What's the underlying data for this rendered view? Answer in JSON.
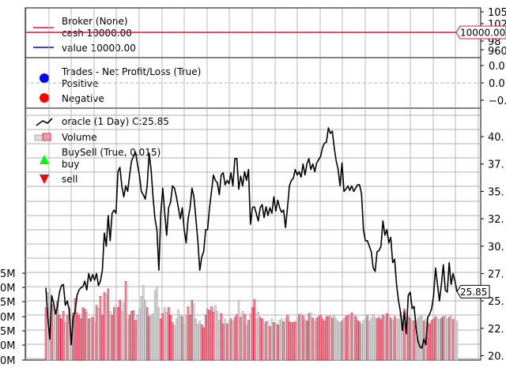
{
  "colors": {
    "cash_line": "#dc143c",
    "value_line": "#0000dd",
    "positive": "#0000ff",
    "negative": "#ff0000",
    "buy": "#00ff00",
    "sell": "#ff0000",
    "price_line": "#000000",
    "vol_up": "#e8a0a8",
    "vol_up_edge": "#dc143c",
    "vol_down": "#dddddd",
    "vol_down_edge": "#999999",
    "grid": "#b0b0b0"
  },
  "broker_panel": {
    "legend_title": "Broker (None)",
    "cash_label": "cash 10000.00",
    "value_label": "value 10000.00",
    "cash_value": 10000,
    "tag": "10000.00",
    "yticks": [
      "105",
      "102",
      "100",
      "98",
      "960"
    ]
  },
  "trades_panel": {
    "legend_title": "Trades - Net Profit/Loss (True)",
    "positive_label": "Positive",
    "negative_label": "Negative",
    "yticks": [
      "0.0",
      "0.0",
      "0.0",
      "−0."
    ]
  },
  "price_panel": {
    "series_label": "oracle (1 Day) C:25.85",
    "volume_label": "Volume",
    "buysell_label": "BuySell (True, 0.015)",
    "buy_label": "buy",
    "sell_label": "sell",
    "last_value_tag": "25.85",
    "right_yticks": [
      "40.",
      "37.",
      "35.",
      "32.",
      "30.",
      "27.",
      "25.",
      "22.",
      "20."
    ],
    "left_yticks": [
      "5M",
      "0M",
      "5M",
      "0M",
      "5M",
      "0M",
      "0M"
    ]
  },
  "chart_data": {
    "type": "line",
    "series": [
      {
        "name": "oracle (1 Day) C:25.85",
        "values": [
          26.2,
          23.5,
          21.5,
          25.5,
          24.8,
          23.8,
          24.6,
          25.8,
          26.4,
          26.5,
          24.6,
          25.0,
          24.2,
          21.0,
          23.5,
          24.0,
          25.5,
          26.0,
          26.2,
          26.3,
          26.8,
          26.0,
          27.5,
          26.8,
          27.4,
          26.9,
          27.5,
          26.4,
          26.8,
          27.8,
          31.2,
          30.0,
          32.8,
          30.5,
          33.0,
          33.3,
          33.0,
          36.8,
          37.2,
          35.5,
          34.5,
          35.5,
          35.0,
          36.5,
          37.8,
          38.2,
          38.6,
          37.5,
          36.5,
          35.0,
          34.7,
          34.3,
          35.5,
          38.5,
          37.0,
          34.5,
          32.5,
          31.5,
          27.8,
          33.0,
          35.3,
          33.0,
          31.0,
          33.5,
          34.0,
          35.5,
          35.3,
          34.5,
          33.5,
          32.5,
          33.5,
          31.5,
          30.3,
          32.5,
          33.5,
          35.3,
          34.5,
          32.5,
          30.5,
          27.8,
          29.0,
          29.5,
          31.5,
          31.5,
          33.5,
          35.0,
          36.5,
          36.0,
          35.8,
          34.7,
          36.5,
          36.7,
          35.6,
          36.0,
          35.7,
          36.7,
          35.5,
          38.0,
          38.0,
          35.2,
          36.4,
          35.5,
          36.8,
          36.0,
          37.0,
          32.0,
          33.5,
          33.6,
          33.0,
          32.3,
          33.5,
          33.8,
          32.6,
          33.6,
          32.8,
          33.5,
          33.0,
          34.5,
          33.2,
          34.2,
          33.5,
          33.1,
          33.3,
          31.7,
          33.5,
          35.5,
          36.0,
          36.2,
          37.0,
          36.5,
          36.8,
          36.3,
          37.5,
          36.5,
          37.5,
          38.0,
          37.0,
          37.5,
          36.8,
          37.6,
          37.9,
          38.2,
          39.0,
          39.4,
          39.5,
          40.8,
          40.3,
          40.5,
          39.0,
          37.8,
          37.0,
          35.5,
          37.6,
          35.0,
          35.2,
          35.5,
          35.1,
          35.5,
          35.0,
          35.3,
          35.6,
          35.6,
          34.8,
          31.5,
          30.5,
          30.5,
          30.0,
          29.5,
          28.0,
          27.7,
          29.5,
          29.6,
          30.0,
          32.3,
          31.0,
          31.5,
          30.3,
          30.8,
          28.5,
          28.8,
          26.5,
          25.0,
          24.0,
          22.3,
          24.0,
          22.0,
          25.5,
          25.8,
          24.3,
          24.5,
          22.5,
          21.3,
          20.8,
          20.7,
          21.5,
          21.0,
          23.5,
          23.8,
          24.3,
          25.5,
          28.0,
          26.5,
          25.0,
          26.5,
          28.3,
          26.0,
          25.8,
          28.5,
          26.5,
          27.5,
          26.8,
          25.85
        ]
      }
    ],
    "volume": [
      0.7,
      0.9,
      0.95,
      0.74,
      0.73,
      0.66,
      0.78,
      0.6,
      0.55,
      0.65,
      0.5,
      0.6,
      0.7,
      0.55,
      0.63,
      0.82,
      0.63,
      0.6,
      0.55,
      0.7,
      0.68,
      0.64,
      0.55,
      0.56,
      0.57,
      0.5,
      0.73,
      0.69,
      0.85,
      0.6,
      0.9,
      0.88,
      0.95,
      0.65,
      0.6,
      0.7,
      0.74,
      0.7,
      0.8,
      0.65,
      0.76,
      1.05,
      0.55,
      0.6,
      0.65,
      0.66,
      0.53,
      0.6,
      0.68,
      0.85,
      1.0,
      0.8,
      0.7,
      0.58,
      0.6,
      0.62,
      0.93,
      0.97,
      0.7,
      0.55,
      0.62,
      0.7,
      0.64,
      0.7,
      0.6,
      0.5,
      0.46,
      0.55,
      0.67,
      0.6,
      0.58,
      0.47,
      0.6,
      0.71,
      0.6,
      0.8,
      0.75,
      0.55,
      0.48,
      0.52,
      0.47,
      0.43,
      0.6,
      0.68,
      0.66,
      0.71,
      0.64,
      0.73,
      0.65,
      0.53,
      0.62,
      0.48,
      0.55,
      0.48,
      0.52,
      0.55,
      0.52,
      0.57,
      0.61,
      0.8,
      0.57,
      0.65,
      0.61,
      0.46,
      0.53,
      0.62,
      0.7,
      0.81,
      0.55,
      0.64,
      0.57,
      0.55,
      0.48,
      0.51,
      0.52,
      0.45,
      0.55,
      0.5,
      0.49,
      0.47,
      0.53,
      0.55,
      0.51,
      0.56,
      0.6,
      0.51,
      0.5,
      0.5,
      0.51,
      0.56,
      0.61,
      0.62,
      0.59,
      0.54,
      0.52,
      0.62,
      0.63,
      0.56,
      0.51,
      0.56,
      0.58,
      0.6,
      0.55,
      0.52,
      0.58,
      0.58,
      0.59,
      0.56,
      0.6,
      0.55,
      0.52,
      0.5,
      0.52,
      0.55,
      0.58,
      0.6,
      0.59,
      0.63,
      0.61,
      0.58,
      0.53,
      0.51,
      0.48,
      0.53,
      0.55,
      0.59,
      0.52,
      0.56,
      0.61,
      0.57,
      0.55,
      0.57,
      0.54,
      0.6,
      0.58,
      0.62,
      0.61,
      0.56,
      0.53,
      0.58,
      0.55,
      0.54,
      0.64,
      0.6,
      0.68,
      0.62,
      0.58,
      0.56,
      0.53,
      0.52,
      0.54,
      0.57,
      0.58,
      0.6,
      0.52,
      0.55,
      0.5,
      0.48,
      0.53,
      0.55,
      0.58,
      0.56,
      0.54,
      0.56,
      0.58,
      0.59,
      0.55,
      0.57,
      0.6,
      0.54,
      0.56,
      0.52,
      0.55,
      0.53,
      0.51
    ],
    "ylim": [
      19.6,
      42.6
    ]
  }
}
